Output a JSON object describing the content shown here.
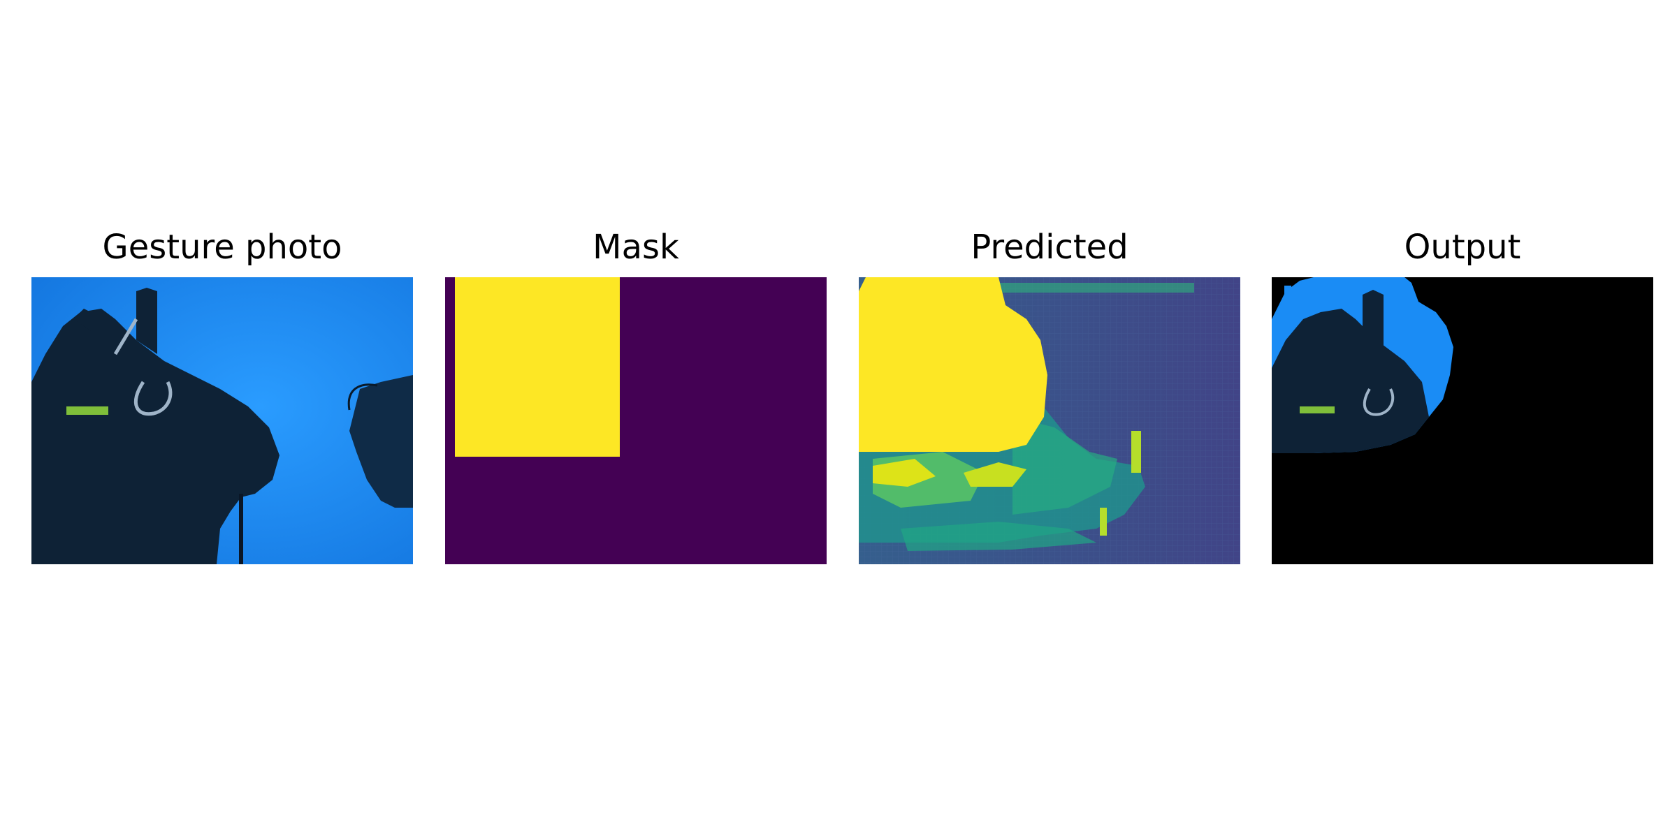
{
  "figure": {
    "panels": [
      {
        "title": "Gesture photo"
      },
      {
        "title": "Mask"
      },
      {
        "title": "Predicted"
      },
      {
        "title": "Output"
      }
    ]
  },
  "colors": {
    "water": "#1a8cf5",
    "diver_dark": "#0e2236",
    "mask_background": "#440154",
    "mask_foreground": "#fde725",
    "predicted_background": "#3e4f8c",
    "predicted_mid": "#21a685",
    "output_background": "#000000"
  }
}
